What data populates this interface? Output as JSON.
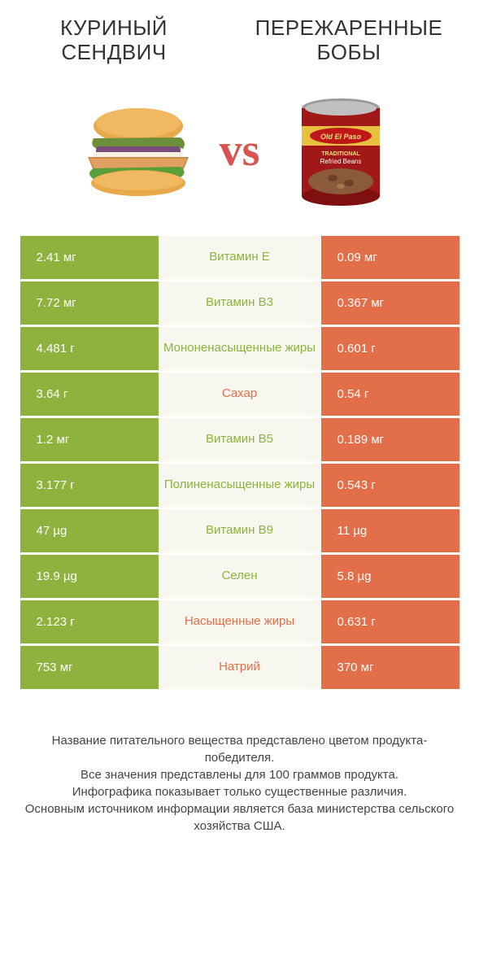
{
  "header": {
    "left_title": "КУРИНЫЙ СЕНДВИЧ",
    "right_title": "ПЕРЕЖАРЕННЫЕ БОБЫ",
    "vs": "vs"
  },
  "colors": {
    "green": "#8eb23d",
    "orange": "#e36f4a",
    "center_bg": "#f7f7f0",
    "green_text": "#8eb23d",
    "orange_text": "#e36f4a"
  },
  "rows": [
    {
      "left": "2.41 мг",
      "center": "Витамин E",
      "right": "0.09 мг",
      "winner": "left",
      "label_color": "green"
    },
    {
      "left": "7.72 мг",
      "center": "Витамин B3",
      "right": "0.367 мг",
      "winner": "left",
      "label_color": "green"
    },
    {
      "left": "4.481 г",
      "center": "Мононенасыщенные жиры",
      "right": "0.601 г",
      "winner": "left",
      "label_color": "green"
    },
    {
      "left": "3.64 г",
      "center": "Сахар",
      "right": "0.54 г",
      "winner": "left",
      "label_color": "orange"
    },
    {
      "left": "1.2 мг",
      "center": "Витамин B5",
      "right": "0.189 мг",
      "winner": "left",
      "label_color": "green"
    },
    {
      "left": "3.177 г",
      "center": "Полиненасыщенные жиры",
      "right": "0.543 г",
      "winner": "left",
      "label_color": "green"
    },
    {
      "left": "47 µg",
      "center": "Витамин B9",
      "right": "11 µg",
      "winner": "left",
      "label_color": "green"
    },
    {
      "left": "19.9 µg",
      "center": "Селен",
      "right": "5.8 µg",
      "winner": "left",
      "label_color": "green"
    },
    {
      "left": "2.123 г",
      "center": "Насыщенные жиры",
      "right": "0.631 г",
      "winner": "left",
      "label_color": "orange"
    },
    {
      "left": "753 мг",
      "center": "Натрий",
      "right": "370 мг",
      "winner": "left",
      "label_color": "orange"
    }
  ],
  "footer": {
    "line1": "Название питательного вещества представлено цветом продукта-победителя.",
    "line2": "Все значения представлены для 100 граммов продукта.",
    "line3": "Инфографика показывает только существенные различия.",
    "line4": "Основным источником информации является база министерства сельского хозяйства США."
  }
}
